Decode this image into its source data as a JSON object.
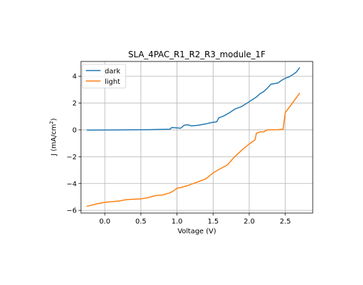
{
  "chart_data": {
    "type": "line",
    "title": "SLA_4PAC_R1_R2_R3_module_1F",
    "xlabel": "Voltage (V)",
    "ylabel_main": "J (mA/cm",
    "ylabel_sup": "2",
    "ylabel_end": ")",
    "xlim": [
      -0.33,
      2.88
    ],
    "ylim": [
      -6.2,
      5.1
    ],
    "xticks": [
      0.0,
      0.5,
      1.0,
      1.5,
      2.0,
      2.5
    ],
    "xtick_labels": [
      "0.0",
      "0.5",
      "1.0",
      "1.5",
      "2.0",
      "2.5"
    ],
    "yticks": [
      -6,
      -4,
      -2,
      0,
      2,
      4
    ],
    "ytick_labels": [
      "−6",
      "−4",
      "−2",
      "0",
      "2",
      "4"
    ],
    "grid": true,
    "legend_position": "top-left",
    "series": [
      {
        "name": "dark",
        "color": "#1f77b4",
        "x": [
          -0.25,
          0.0,
          0.3,
          0.6,
          0.9,
          0.93,
          1.0,
          1.05,
          1.1,
          1.15,
          1.2,
          1.3,
          1.4,
          1.48,
          1.55,
          1.58,
          1.65,
          1.72,
          1.8,
          1.9,
          2.0,
          2.1,
          2.15,
          2.2,
          2.25,
          2.3,
          2.4,
          2.45,
          2.5,
          2.55,
          2.6,
          2.65,
          2.7
        ],
        "y": [
          -0.02,
          -0.01,
          0.0,
          0.02,
          0.05,
          0.18,
          0.15,
          0.12,
          0.35,
          0.38,
          0.3,
          0.35,
          0.45,
          0.55,
          0.6,
          0.9,
          1.05,
          1.25,
          1.55,
          1.75,
          2.1,
          2.45,
          2.7,
          2.85,
          3.1,
          3.4,
          3.5,
          3.7,
          3.85,
          3.95,
          4.1,
          4.3,
          4.65
        ]
      },
      {
        "name": "light",
        "color": "#ff7f0e",
        "x": [
          -0.25,
          -0.1,
          0.0,
          0.2,
          0.3,
          0.5,
          0.6,
          0.7,
          0.8,
          0.9,
          0.95,
          1.0,
          1.05,
          1.15,
          1.3,
          1.4,
          1.5,
          1.6,
          1.7,
          1.8,
          1.9,
          2.0,
          2.08,
          2.1,
          2.15,
          2.2,
          2.25,
          2.3,
          2.4,
          2.47,
          2.5,
          2.6,
          2.7
        ],
        "y": [
          -5.7,
          -5.5,
          -5.4,
          -5.3,
          -5.2,
          -5.15,
          -5.05,
          -4.9,
          -4.85,
          -4.7,
          -4.55,
          -4.35,
          -4.3,
          -4.15,
          -3.85,
          -3.65,
          -3.2,
          -2.9,
          -2.6,
          -2.0,
          -1.5,
          -1.05,
          -0.75,
          -0.25,
          -0.15,
          -0.15,
          0.0,
          0.0,
          0.02,
          0.05,
          1.3,
          2.0,
          2.75
        ]
      }
    ]
  }
}
